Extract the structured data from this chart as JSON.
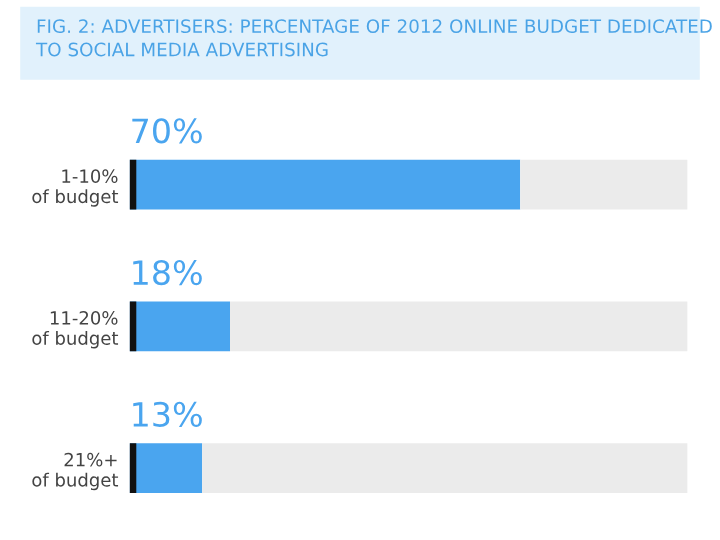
{
  "chart_data": {
    "type": "bar",
    "orientation": "horizontal",
    "stacked": true,
    "title": "FIG. 2: ADVERTISERS: PERCENTAGE OF 2012 ONLINE BUDGET DEDICATED TO SOCIAL MEDIA ADVERTISING",
    "categories": [
      "1-10%\nof budget",
      "11-20%\nof budget",
      "21%+\nof budget"
    ],
    "series": [
      {
        "color": "#4aa5ef",
        "values": [
          70,
          18,
          13
        ],
        "value_labels": [
          "70%",
          "18%",
          "13%"
        ]
      },
      {
        "color": "#ebebeb",
        "values": [
          30,
          82,
          87
        ]
      }
    ],
    "tick_labels": "y"
  }
}
